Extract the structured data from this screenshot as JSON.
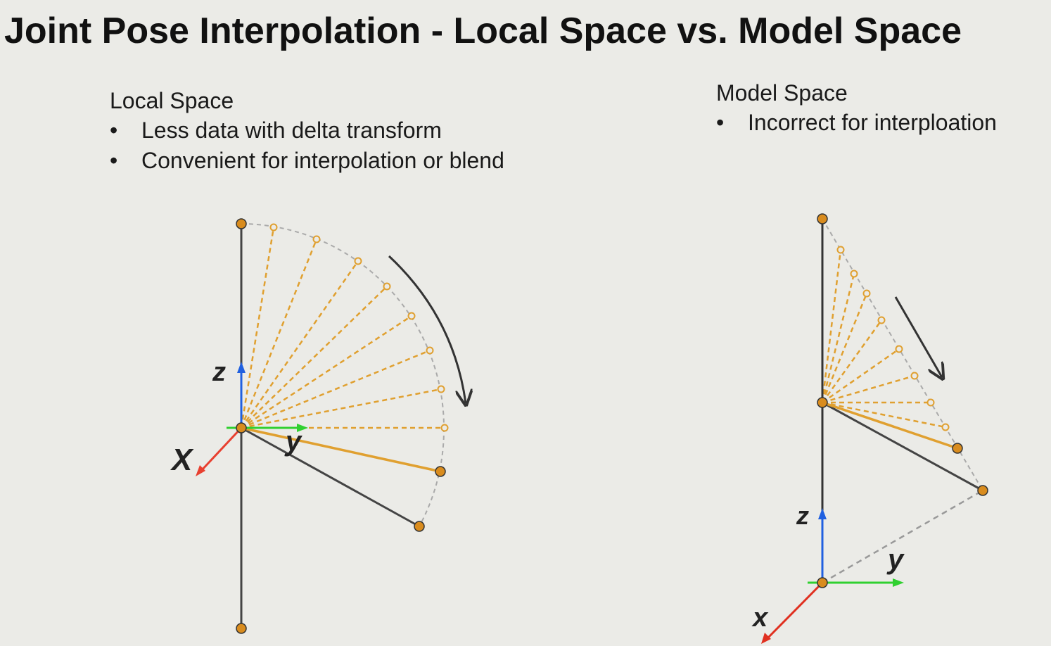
{
  "title": "Joint Pose Interpolation - Local Space vs. Model Space",
  "left_panel": {
    "heading": "Local Space",
    "bullets": [
      "Less data with delta transform",
      "Convenient for interpolation or blend"
    ]
  },
  "right_panel": {
    "heading": "Model Space",
    "bullets": [
      "Incorrect for interploation"
    ]
  },
  "left_diagram": {
    "axis_labels": {
      "z": "z",
      "x": "X",
      "y": "y"
    }
  },
  "right_diagram": {
    "axis_labels": {
      "z": "z",
      "x": "x",
      "y": "y"
    }
  },
  "colors": {
    "bone": "#444444",
    "interp": "#e0a030",
    "joint_fill": "#d98c1e",
    "axis_x": "#e84030",
    "axis_y": "#30d030",
    "axis_z": "#2060e0",
    "arc": "#aaaaaa"
  }
}
